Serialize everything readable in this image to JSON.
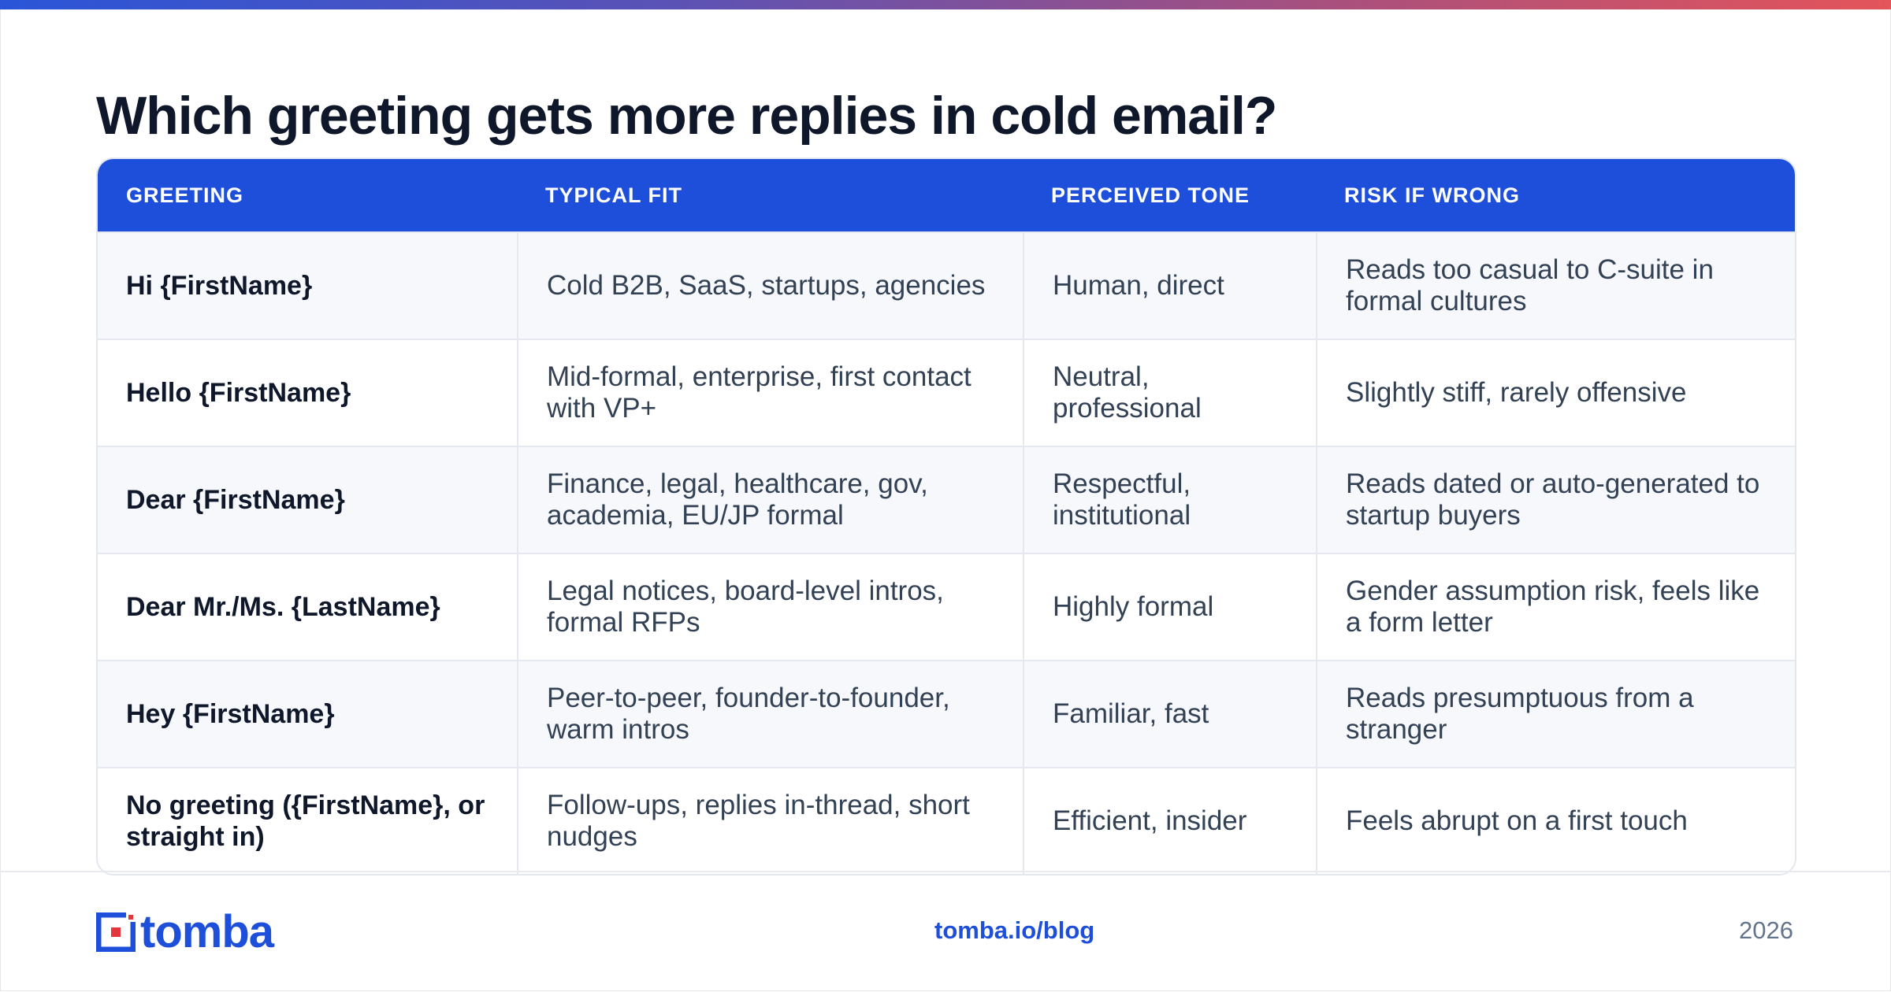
{
  "title": "Which greeting gets more replies in cold email?",
  "table": {
    "headers": [
      "GREETING",
      "TYPICAL FIT",
      "PERCEIVED TONE",
      "RISK IF WRONG"
    ],
    "rows": [
      [
        "Hi {FirstName}",
        "Cold B2B, SaaS, startups, agencies",
        "Human, direct",
        "Reads too casual to C-suite in formal cultures"
      ],
      [
        "Hello {FirstName}",
        "Mid-formal, enterprise, first contact with VP+",
        "Neutral, professional",
        "Slightly stiff, rarely offensive"
      ],
      [
        "Dear {FirstName}",
        "Finance, legal, healthcare, gov, academia, EU/JP formal",
        "Respectful, institutional",
        "Reads dated or auto-generated to startup buyers"
      ],
      [
        "Dear Mr./Ms. {LastName}",
        "Legal notices, board-level intros, formal RFPs",
        "Highly formal",
        "Gender assumption risk, feels like a form letter"
      ],
      [
        "Hey {FirstName}",
        "Peer-to-peer, founder-to-founder, warm intros",
        "Familiar, fast",
        "Reads presumptuous from a stranger"
      ],
      [
        "No greeting ({FirstName}, or straight in)",
        "Follow-ups, replies in-thread, short nudges",
        "Efficient, insider",
        "Feels abrupt on a first touch"
      ]
    ]
  },
  "footer": {
    "brand": "tomba",
    "url": "tomba.io/blog",
    "year": "2026"
  },
  "colors": {
    "accent": "#1d4fdb",
    "heading": "#0f172a",
    "logo_red": "#e4363c"
  }
}
